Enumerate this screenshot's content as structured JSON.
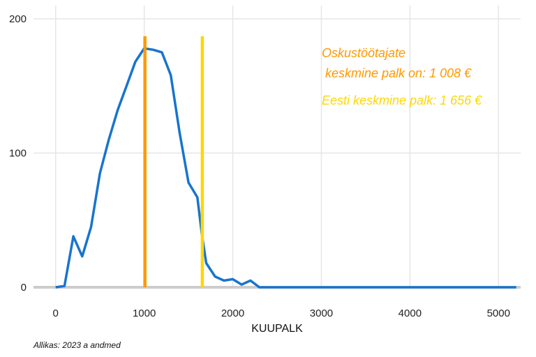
{
  "chart_data": {
    "type": "line",
    "xlabel": "KUUPALK",
    "ylabel": "",
    "xlim": [
      -250,
      5250
    ],
    "ylim": [
      0,
      200
    ],
    "xticks": [
      0,
      1000,
      2000,
      3000,
      4000,
      5000
    ],
    "yticks": [
      0,
      100,
      200
    ],
    "grid": true,
    "series": [
      {
        "color": "#1874cd",
        "x": [
          0,
          100,
          200,
          300,
          400,
          500,
          600,
          700,
          800,
          900,
          1000,
          1100,
          1200,
          1300,
          1400,
          1500,
          1600,
          1650,
          1700,
          1800,
          1900,
          2000,
          2100,
          2200,
          2300,
          2400,
          2500,
          3000,
          4000,
          5000,
          5200
        ],
        "y": [
          0,
          1,
          38,
          23,
          45,
          85,
          110,
          132,
          150,
          168,
          178,
          177,
          175,
          158,
          115,
          78,
          67,
          40,
          18,
          8,
          5,
          6,
          2,
          5,
          0,
          0,
          0,
          0,
          0,
          0,
          0
        ]
      }
    ],
    "vlines": [
      {
        "x": 1008,
        "color": "#ff9900"
      },
      {
        "x": 1656,
        "color": "#ffd700"
      }
    ],
    "annotations": [
      {
        "lines": [
          "Oskustöötajate",
          " keskmine palk on: 1 008 €"
        ],
        "color": "#ff9900"
      },
      {
        "lines": [
          "Eesti keskmine palk: 1 656 €"
        ],
        "color": "#ffd700"
      }
    ]
  },
  "source": "Allikas: 2023 a andmed"
}
